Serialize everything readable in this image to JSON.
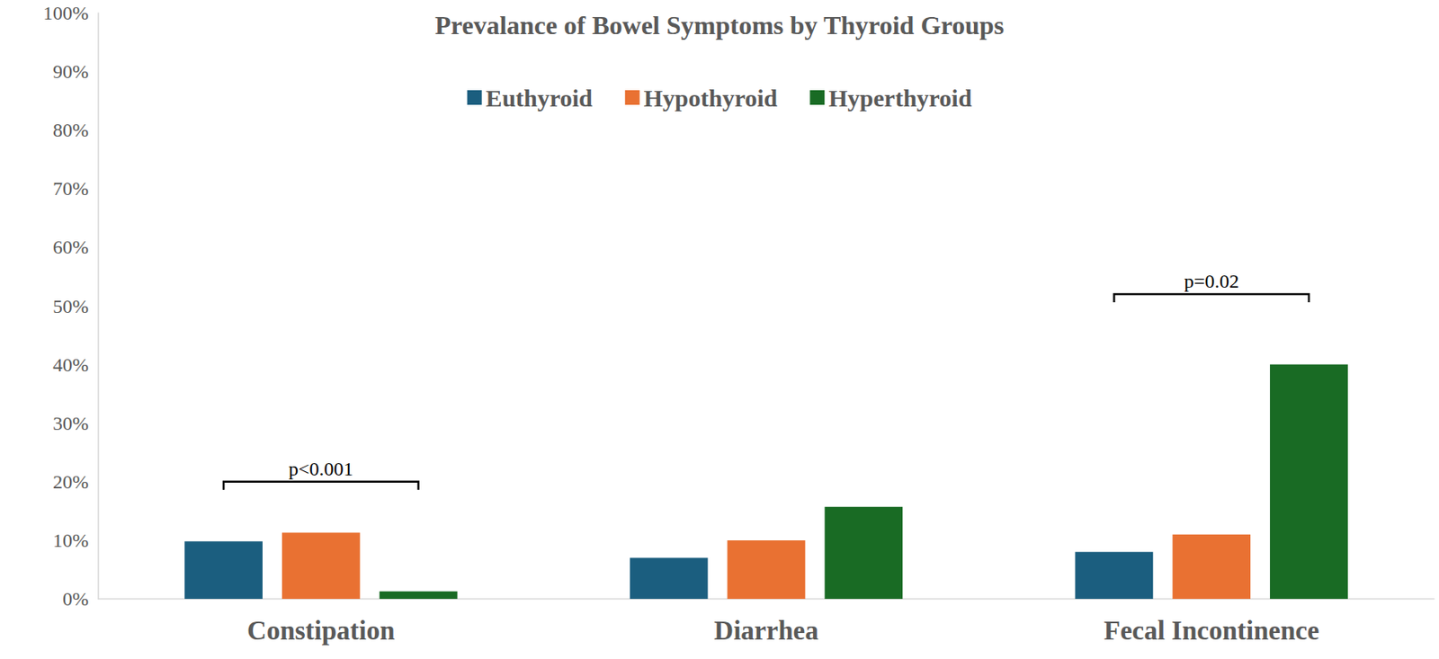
{
  "chart_data": {
    "type": "bar",
    "title": "Prevalance of Bowel Symptoms by Thyroid Groups",
    "categories": [
      "Constipation",
      "Diarrhea",
      "Fecal Incontinence"
    ],
    "series": [
      {
        "name": "Euthyroid",
        "color": "#1b5e7f",
        "values": [
          9.8,
          7,
          8
        ]
      },
      {
        "name": "Hypothyroid",
        "color": "#e97132",
        "values": [
          11.3,
          10,
          11
        ]
      },
      {
        "name": "Hyperthyroid",
        "color": "#196b24",
        "values": [
          1.3,
          15.7,
          40
        ]
      }
    ],
    "ylim": [
      0,
      100
    ],
    "yticks": [
      {
        "value": 0,
        "label": "0%"
      },
      {
        "value": 10,
        "label": "10%"
      },
      {
        "value": 20,
        "label": "20%"
      },
      {
        "value": 30,
        "label": "30%"
      },
      {
        "value": 40,
        "label": "40%"
      },
      {
        "value": 50,
        "label": "50%"
      },
      {
        "value": 60,
        "label": "60%"
      },
      {
        "value": 70,
        "label": "70%"
      },
      {
        "value": 80,
        "label": "80%"
      },
      {
        "value": 90,
        "label": "90%"
      },
      {
        "value": 100,
        "label": "100%"
      }
    ],
    "grid": false,
    "legend": "top",
    "annotations": [
      {
        "text": "p<0.001",
        "category": "Constipation",
        "y": 20
      },
      {
        "text": "p=0.02",
        "category": "Fecal Incontinence",
        "y": 52
      }
    ]
  }
}
